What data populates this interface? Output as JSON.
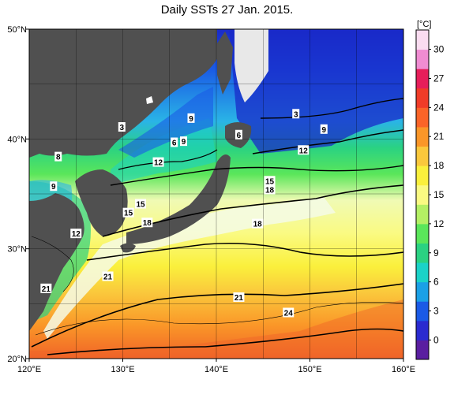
{
  "title": "Daily SSTs 27 Jan. 2015.",
  "colorbar": {
    "unit": "[°C]",
    "ticks": [
      "30",
      "27",
      "24",
      "21",
      "18",
      "15",
      "12",
      "9",
      "6",
      "3",
      "0"
    ],
    "tick_values": [
      30,
      27,
      24,
      21,
      18,
      15,
      12,
      9,
      6,
      3,
      0
    ],
    "range": [
      -2,
      32
    ],
    "colors": [
      "#5a1ea0",
      "#2a2ad0",
      "#1a5ae6",
      "#1aa0e6",
      "#1ad2c8",
      "#2ad282",
      "#5ae65a",
      "#b4f064",
      "#fafa82",
      "#faf03c",
      "#fac83c",
      "#fa9628",
      "#fa6428",
      "#f03c28",
      "#e61e5a",
      "#f08cd2",
      "#fadcf0"
    ]
  },
  "axes": {
    "lon_ticks": [
      {
        "value": 120,
        "label": "120°E"
      },
      {
        "value": 130,
        "label": "130°E"
      },
      {
        "value": 140,
        "label": "140°E"
      },
      {
        "value": 150,
        "label": "150°E"
      },
      {
        "value": 160,
        "label": "160°E"
      }
    ],
    "lat_ticks": [
      {
        "value": 50,
        "label": "50°N"
      },
      {
        "value": 40,
        "label": "40°N"
      },
      {
        "value": 30,
        "label": "30°N"
      },
      {
        "value": 20,
        "label": "20°N"
      }
    ],
    "lon_range": [
      120,
      160
    ],
    "lat_range": [
      20,
      50
    ]
  },
  "contour_labels": [
    {
      "text": "3",
      "lon": 129.9,
      "lat": 41.1
    },
    {
      "text": "3",
      "lon": 148.5,
      "lat": 42.3
    },
    {
      "text": "9",
      "lon": 137.3,
      "lat": 41.9
    },
    {
      "text": "9",
      "lon": 151.5,
      "lat": 40.9
    },
    {
      "text": "6",
      "lon": 135.5,
      "lat": 39.7
    },
    {
      "text": "9",
      "lon": 136.5,
      "lat": 39.8
    },
    {
      "text": "6",
      "lon": 142.4,
      "lat": 40.4
    },
    {
      "text": "8",
      "lon": 123.1,
      "lat": 38.4
    },
    {
      "text": "12",
      "lon": 149.3,
      "lat": 39.0
    },
    {
      "text": "12",
      "lon": 133.8,
      "lat": 37.9
    },
    {
      "text": "9",
      "lon": 122.6,
      "lat": 35.7
    },
    {
      "text": "15",
      "lon": 145.7,
      "lat": 36.2
    },
    {
      "text": "18",
      "lon": 145.7,
      "lat": 35.4
    },
    {
      "text": "15",
      "lon": 131.9,
      "lat": 34.1
    },
    {
      "text": "15",
      "lon": 130.6,
      "lat": 33.3
    },
    {
      "text": "18",
      "lon": 132.6,
      "lat": 32.4
    },
    {
      "text": "18",
      "lon": 144.4,
      "lat": 32.3
    },
    {
      "text": "12",
      "lon": 125.0,
      "lat": 31.4
    },
    {
      "text": "21",
      "lon": 128.4,
      "lat": 27.5
    },
    {
      "text": "21",
      "lon": 121.8,
      "lat": 26.4
    },
    {
      "text": "21",
      "lon": 142.4,
      "lat": 25.6
    },
    {
      "text": "24",
      "lon": 147.7,
      "lat": 24.2
    }
  ]
}
